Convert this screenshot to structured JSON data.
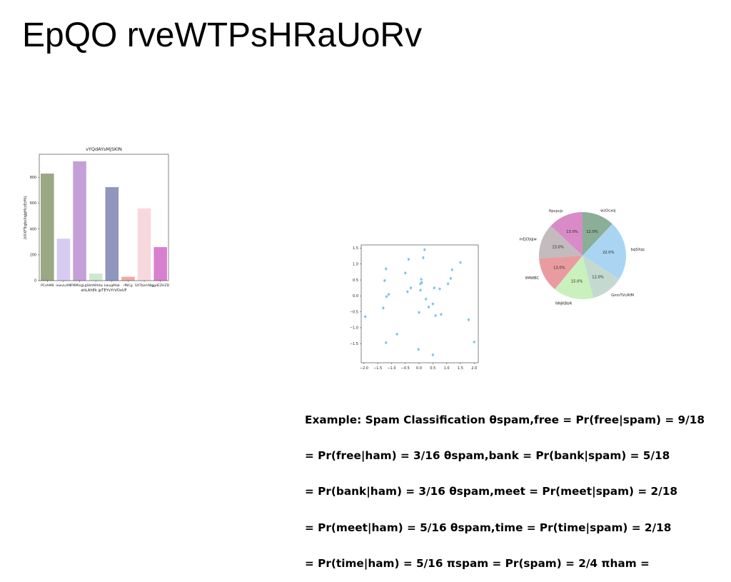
{
  "page": {
    "title": "EpQO rveWTPsHRaUoRv"
  },
  "chart_data": [
    {
      "type": "bar",
      "title": "vYQdAYsMjSKlN",
      "xlabel": "ahLAhEk jpTEYvYrVOxUF",
      "ylabel": "jVXXFTcgbcXqJgMczEzMiL",
      "categories": [
        "PCzhMB",
        "iewvLzMt",
        "FMMlsgLgS",
        "bhMAdw",
        "kwxgMab",
        "ifNCg",
        "SXTbzmNIg",
        "ggdEZHZD"
      ],
      "tick_labels": [
        "PCzhMB",
        "iewvLzMt",
        "FMMlsgLgS",
        "bhMAdw",
        "kwxgMab",
        "ifNCg",
        "SXTbzmNIg",
        "ggdEZHZD"
      ],
      "values": [
        830,
        325,
        925,
        55,
        725,
        30,
        560,
        260
      ],
      "colors": [
        "#9aa883",
        "#d6cbf1",
        "#c5a0d8",
        "#cfe8d1",
        "#8f97be",
        "#f4aaa0",
        "#f6d8de",
        "#d97fd0"
      ],
      "ylim": [
        0,
        980
      ],
      "yticks": [
        0,
        200,
        400,
        600,
        800
      ],
      "grid": false
    },
    {
      "type": "scatter",
      "title": "",
      "xlabel": "",
      "ylabel": "",
      "color": "#7ec7e0",
      "xlim": [
        -2.1,
        2.15
      ],
      "ylim": [
        -2.1,
        1.6
      ],
      "xticks": [
        "−2.0",
        "−1.5",
        "−1.0",
        "−0.5",
        "0.0",
        "0.5",
        "1.0",
        "1.5",
        "2.0"
      ],
      "xtick_values": [
        -2.0,
        -1.5,
        -1.0,
        -0.5,
        0.0,
        0.5,
        1.0,
        1.5,
        2.0
      ],
      "yticks": [
        "1.5",
        "1.0",
        "0.5",
        "0.0",
        "−0.5",
        "−1.0",
        "−1.5"
      ],
      "ytick_values": [
        1.5,
        1.0,
        0.5,
        0.0,
        -0.5,
        -1.0,
        -1.5
      ],
      "points": [
        [
          -1.95,
          -0.65
        ],
        [
          -1.3,
          -0.38
        ],
        [
          -1.25,
          0.48
        ],
        [
          -1.2,
          0.85
        ],
        [
          -1.2,
          -1.47
        ],
        [
          -1.18,
          -0.02
        ],
        [
          -1.1,
          0.05
        ],
        [
          -0.8,
          -1.2
        ],
        [
          -0.5,
          0.72
        ],
        [
          -0.42,
          0.13
        ],
        [
          -0.38,
          1.15
        ],
        [
          -0.3,
          0.25
        ],
        [
          -0.02,
          -1.68
        ],
        [
          0.0,
          -0.52
        ],
        [
          0.05,
          0.18
        ],
        [
          0.05,
          0.38
        ],
        [
          0.08,
          0.52
        ],
        [
          0.1,
          0.42
        ],
        [
          0.15,
          1.2
        ],
        [
          0.2,
          1.45
        ],
        [
          0.25,
          -0.1
        ],
        [
          0.35,
          -0.35
        ],
        [
          0.5,
          -0.25
        ],
        [
          0.5,
          -1.85
        ],
        [
          0.55,
          0.25
        ],
        [
          0.6,
          -0.62
        ],
        [
          0.75,
          0.22
        ],
        [
          0.8,
          -0.58
        ],
        [
          1.05,
          0.38
        ],
        [
          1.15,
          0.55
        ],
        [
          1.2,
          0.82
        ],
        [
          1.5,
          1.05
        ],
        [
          1.8,
          -0.75
        ],
        [
          2.0,
          -1.45
        ]
      ]
    },
    {
      "type": "pie",
      "title": "",
      "labels": [
        "wzOcxoj",
        "bqSXqc",
        "GmnTVcRfM",
        "NNJKBbR",
        "llMWBC",
        "mEjOJqjw",
        "fipcpcjc"
      ],
      "values": [
        12.0,
        22.0,
        12.0,
        15.0,
        13.0,
        13.0,
        13.0
      ],
      "pct_labels": [
        "12.0%",
        "22.0%",
        "12.0%",
        "15.0%",
        "13.0%",
        "13.0%",
        "13.0%"
      ],
      "colors": [
        "#8aaf96",
        "#a9d5f2",
        "#c4dad0",
        "#c9f0bd",
        "#e99ca0",
        "#c3bbbd",
        "#d98bc7"
      ],
      "start_angle_deg": 90,
      "direction": "clockwise"
    }
  ],
  "formula_lines": [
    "Example: Spam Classification θspam,free = Pr(free|spam) = 9/18",
    "= Pr(free|ham) = 3/16 θspam,bank = Pr(bank|spam) = 5/18",
    "= Pr(bank|ham) = 3/16 θspam,meet = Pr(meet|spam) = 2/18",
    "= Pr(meet|ham) = 5/16 θspam,time = Pr(time|spam) = 2/18",
    "= Pr(time|ham) = 5/16 πspam = Pr(spam) = 2/4 πham ="
  ]
}
